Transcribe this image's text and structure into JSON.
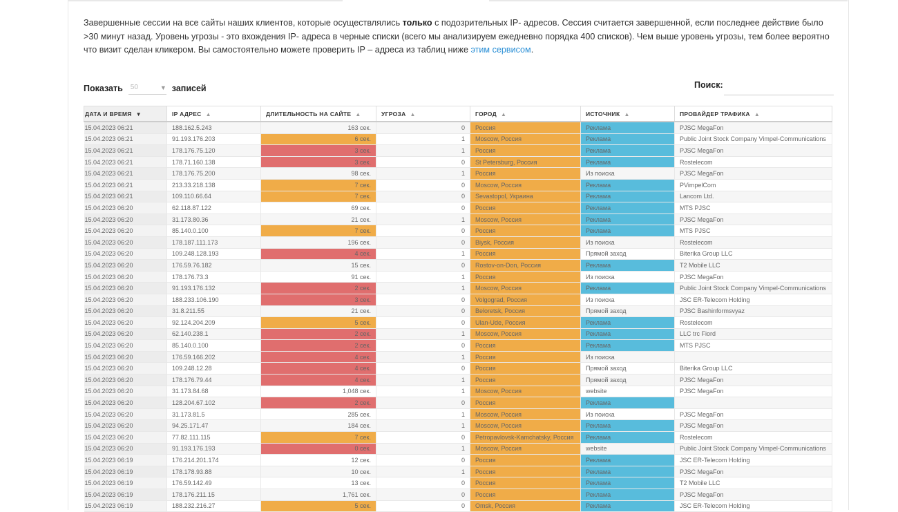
{
  "intro": {
    "part1": "Завершенные сессии на все сайты наших клиентов, которые осуществлялись ",
    "bold": "только",
    "part2": " с подозрительных IP- адресов. Сессия считается завершенной, если последнее действие было >30 минут назад. Уровень угрозы - это вхождения IP- адреса в черные списки (всего мы анализируем ежедневно порядка 400 списков). Чем выше уровень угрозы, тем более вероятно что визит сделан кликером. Вы самостоятельно можете проверить IP – адреса из таблиц ниже ",
    "link": "этим сервисом",
    "part3": "."
  },
  "controls": {
    "show_label": "Показать",
    "page_size": "50",
    "records_label": "записей",
    "search_label": "Поиск:",
    "search_value": ""
  },
  "columns": [
    {
      "label": "ДАТА И ВРЕМЯ",
      "sort": "▼"
    },
    {
      "label": "IP АДРЕС",
      "sort": "▲"
    },
    {
      "label": "ДЛИТЕЛЬНОСТЬ НА САЙТЕ",
      "sort": "▲"
    },
    {
      "label": "УГРОЗА",
      "sort": "▲"
    },
    {
      "label": "ГОРОД",
      "sort": "▲"
    },
    {
      "label": "ИСТОЧНИК",
      "sort": "▲"
    },
    {
      "label": "ПРОВАЙДЕР ТРАФИКА",
      "sort": "▲"
    }
  ],
  "colors": {
    "red": "#e06e6e",
    "orange": "#f0ac48",
    "blue": "#58bcdc"
  },
  "rows": [
    [
      "15.04.2023 06:21",
      "188.162.5.243",
      "163 сек.",
      "0",
      "Россия",
      "Реклама",
      "PJSC MegaFon",
      ""
    ],
    [
      "15.04.2023 06:21",
      "91.193.176.203",
      "6 сек.",
      "1",
      "Moscow, Россия",
      "Реклама",
      "Public Joint Stock Company Vimpel-Communications",
      "orange"
    ],
    [
      "15.04.2023 06:21",
      "178.176.75.120",
      "3 сек.",
      "1",
      "Россия",
      "Реклама",
      "PJSC MegaFon",
      "red"
    ],
    [
      "15.04.2023 06:21",
      "178.71.160.138",
      "3 сек.",
      "0",
      "St Petersburg, Россия",
      "Реклама",
      "Rostelecom",
      "red"
    ],
    [
      "15.04.2023 06:21",
      "178.176.75.200",
      "98 сек.",
      "1",
      "Россия",
      "Из поиска",
      "PJSC MegaFon",
      ""
    ],
    [
      "15.04.2023 06:21",
      "213.33.218.138",
      "7 сек.",
      "0",
      "Moscow, Россия",
      "Реклама",
      "PVimpelCom",
      "orange"
    ],
    [
      "15.04.2023 06:21",
      "109.110.66.64",
      "7 сек.",
      "0",
      "Sevastopol, Украина",
      "Реклама",
      "Lancom Ltd.",
      "orange"
    ],
    [
      "15.04.2023 06:20",
      "62.118.87.122",
      "69 сек.",
      "0",
      "Россия",
      "Реклама",
      "MTS PJSC",
      ""
    ],
    [
      "15.04.2023 06:20",
      "31.173.80.36",
      "21 сек.",
      "1",
      "Moscow, Россия",
      "Реклама",
      "PJSC MegaFon",
      ""
    ],
    [
      "15.04.2023 06:20",
      "85.140.0.100",
      "7 сек.",
      "0",
      "Россия",
      "Реклама",
      "MTS PJSC",
      "orange"
    ],
    [
      "15.04.2023 06:20",
      "178.187.111.173",
      "196 сек.",
      "0",
      "Biysk, Россия",
      "Из поиска",
      "Rostelecom",
      ""
    ],
    [
      "15.04.2023 06:20",
      "109.248.128.193",
      "4 сек.",
      "1",
      "Россия",
      "Прямой заход",
      "Biterika Group LLC",
      "red"
    ],
    [
      "15.04.2023 06:20",
      "176.59.76.182",
      "15 сек.",
      "0",
      "Rostov-on-Don, Россия",
      "Реклама",
      "T2 Mobile LLC",
      ""
    ],
    [
      "15.04.2023 06:20",
      "178.176.73.3",
      "91 сек.",
      "1",
      "Россия",
      "Из поиска",
      "PJSC MegaFon",
      ""
    ],
    [
      "15.04.2023 06:20",
      "91.193.176.132",
      "2 сек.",
      "1",
      "Moscow, Россия",
      "Реклама",
      "Public Joint Stock Company Vimpel-Communications",
      "red"
    ],
    [
      "15.04.2023 06:20",
      "188.233.106.190",
      "3 сек.",
      "0",
      "Volgograd, Россия",
      "Из поиска",
      "JSC ER-Telecom Holding",
      "red"
    ],
    [
      "15.04.2023 06:20",
      "31.8.211.55",
      "21 сек.",
      "0",
      "Beloretsk, Россия",
      "Прямой заход",
      "PJSC Bashinformsvyaz",
      ""
    ],
    [
      "15.04.2023 06:20",
      "92.124.204.209",
      "5 сек.",
      "0",
      "Ulan-Ude, Россия",
      "Реклама",
      "Rostelecom",
      "orange"
    ],
    [
      "15.04.2023 06:20",
      "62.140.238.1",
      "2 сек.",
      "1",
      "Moscow, Россия",
      "Реклама",
      "LLC trc Fiord",
      "red"
    ],
    [
      "15.04.2023 06:20",
      "85.140.0.100",
      "2 сек.",
      "0",
      "Россия",
      "Реклама",
      "MTS PJSC",
      "red"
    ],
    [
      "15.04.2023 06:20",
      "176.59.166.202",
      "4 сек.",
      "1",
      "Россия",
      "Из поиска",
      "",
      "red"
    ],
    [
      "15.04.2023 06:20",
      "109.248.12.28",
      "4 сек.",
      "0",
      "Россия",
      "Прямой заход",
      "Biterika Group LLC",
      "red"
    ],
    [
      "15.04.2023 06:20",
      "178.176.79.44",
      "4 сек.",
      "1",
      "Россия",
      "Прямой заход",
      "PJSC MegaFon",
      "red"
    ],
    [
      "15.04.2023 06:20",
      "31.173.84.68",
      "1,048 сек.",
      "1",
      "Moscow, Россия",
      "website",
      "PJSC MegaFon",
      ""
    ],
    [
      "15.04.2023 06:20",
      "128.204.67.102",
      "2 сек.",
      "0",
      "Россия",
      "Реклама",
      "",
      "red"
    ],
    [
      "15.04.2023 06:20",
      "31.173.81.5",
      "285 сек.",
      "1",
      "Moscow, Россия",
      "Из поиска",
      "PJSC MegaFon",
      ""
    ],
    [
      "15.04.2023 06:20",
      "94.25.171.47",
      "184 сек.",
      "1",
      "Moscow, Россия",
      "Реклама",
      "PJSC MegaFon",
      ""
    ],
    [
      "15.04.2023 06:20",
      "77.82.111.115",
      "7 сек.",
      "0",
      "Petropavlovsk-Kamchatsky, Россия",
      "Реклама",
      "Rostelecom",
      "orange"
    ],
    [
      "15.04.2023 06:20",
      "91.193.176.193",
      "0 сек.",
      "1",
      "Moscow, Россия",
      "website",
      "Public Joint Stock Company Vimpel-Communications",
      "red"
    ],
    [
      "15.04.2023 06:19",
      "176.214.201.174",
      "12 сек.",
      "0",
      "Россия",
      "Реклама",
      "JSC ER-Telecom Holding",
      ""
    ],
    [
      "15.04.2023 06:19",
      "178.178.93.88",
      "10 сек.",
      "1",
      "Россия",
      "Реклама",
      "PJSC MegaFon",
      ""
    ],
    [
      "15.04.2023 06:19",
      "176.59.142.49",
      "13 сек.",
      "0",
      "Россия",
      "Реклама",
      "T2 Mobile LLC",
      ""
    ],
    [
      "15.04.2023 06:19",
      "178.176.211.15",
      "1,761 сек.",
      "0",
      "Россия",
      "Реклама",
      "PJSC MegaFon",
      ""
    ],
    [
      "15.04.2023 06:19",
      "188.232.216.27",
      "5 сек.",
      "0",
      "Omsk, Россия",
      "Реклама",
      "JSC ER-Telecom Holding",
      "orange"
    ]
  ]
}
